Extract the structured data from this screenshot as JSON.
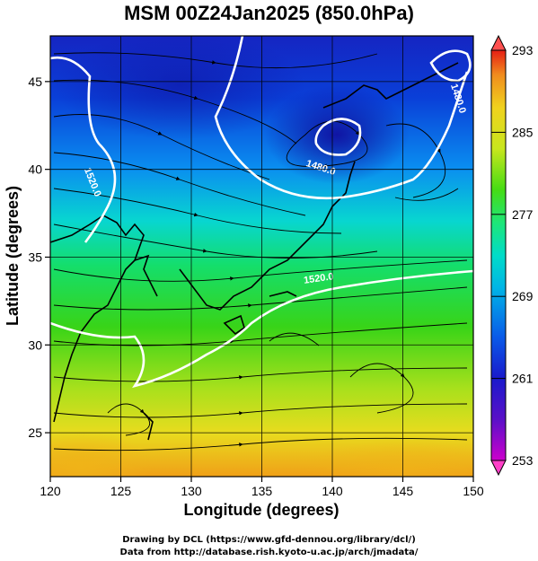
{
  "figure": {
    "title": "MSM 00Z24Jan2025 (850.0hPa)",
    "xlabel": "Longitude (degrees)",
    "ylabel": "Latitude  (degrees)",
    "credit_line1": "Drawing by DCL (https://www.gfd-dennou.org/library/dcl/)",
    "credit_line2": "Data from http://database.rish.kyoto-u.ac.jp/arch/jmadata/"
  },
  "chart_data": {
    "type": "heatmap",
    "variable": "temperature (K) with wind streamlines and geopotential height contours",
    "xlim": [
      120,
      150
    ],
    "ylim": [
      22.5,
      47.6
    ],
    "x_ticks": [
      120,
      125,
      130,
      135,
      140,
      145,
      150
    ],
    "y_ticks": [
      25,
      30,
      35,
      40,
      45
    ],
    "colorbar": {
      "min": 253,
      "max": 293,
      "ticks": [
        293,
        285,
        277,
        269,
        261,
        253
      ],
      "colors": [
        "#cc00cc",
        "#1a1acc",
        "#0a5ae8",
        "#00c8e6",
        "#1ee678",
        "#46dc14",
        "#c8e61e",
        "#f0d21e",
        "#f08c1e",
        "#e61e14"
      ]
    },
    "contours": [
      {
        "label": "1480.0",
        "lon": 148.4,
        "lat": 44.8
      },
      {
        "label": "1480.0",
        "lon": 138.1,
        "lat": 40.2
      },
      {
        "label": "1520.0",
        "lon": 122.4,
        "lat": 40.0
      },
      {
        "label": "1520.0",
        "lon": 138.0,
        "lat": 33.5
      }
    ]
  }
}
